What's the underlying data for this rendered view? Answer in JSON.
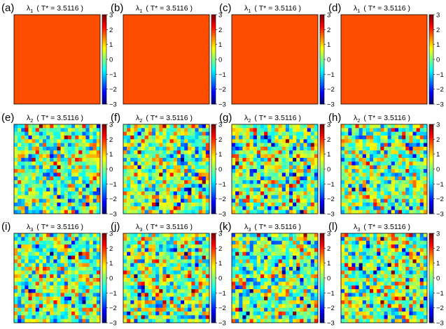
{
  "chart_data": [
    {
      "type": "heatmap",
      "panel_label": "(a)",
      "title_symbol": "λ",
      "title_index": "1",
      "title_temp": "( T* = 3.5116 )",
      "pattern": "uniform",
      "uniform_value": 1.8,
      "clim": [
        -3,
        3
      ],
      "colorbar_ticks": [
        "3",
        "2",
        "1",
        "0",
        "−1",
        "−2",
        "−3"
      ]
    },
    {
      "type": "heatmap",
      "panel_label": "(b)",
      "title_symbol": "λ",
      "title_index": "1",
      "title_temp": "( T* = 3.5116 )",
      "pattern": "uniform",
      "uniform_value": 1.8,
      "clim": [
        -3,
        3
      ],
      "colorbar_ticks": [
        "3",
        "2",
        "1",
        "0",
        "−1",
        "−2",
        "−3"
      ]
    },
    {
      "type": "heatmap",
      "panel_label": "(c)",
      "title_symbol": "λ",
      "title_index": "1",
      "title_temp": "( T* = 3.5116 )",
      "pattern": "uniform",
      "uniform_value": 1.8,
      "clim": [
        -3,
        3
      ],
      "colorbar_ticks": [
        "3",
        "2",
        "1",
        "0",
        "−1",
        "−2",
        "−3"
      ]
    },
    {
      "type": "heatmap",
      "panel_label": "(d)",
      "title_symbol": "λ",
      "title_index": "1",
      "title_temp": "( T* = 3.5116 )",
      "pattern": "uniform",
      "uniform_value": 1.8,
      "clim": [
        -3,
        3
      ],
      "colorbar_ticks": [
        "3",
        "2",
        "1",
        "0",
        "−1",
        "−2",
        "−3"
      ]
    },
    {
      "type": "heatmap",
      "panel_label": "(e)",
      "title_symbol": "λ",
      "title_index": "2",
      "title_temp": "( T* = 3.5116 )",
      "pattern": "random",
      "grid": 24,
      "clim": [
        -3,
        3
      ],
      "colorbar_ticks": [
        "3",
        "2",
        "1",
        "0",
        "−1",
        "−2",
        "−3"
      ]
    },
    {
      "type": "heatmap",
      "panel_label": "(f)",
      "title_symbol": "λ",
      "title_index": "2",
      "title_temp": "( T* = 3.5116 )",
      "pattern": "random",
      "grid": 24,
      "clim": [
        -3,
        3
      ],
      "colorbar_ticks": [
        "3",
        "2",
        "1",
        "0",
        "−1",
        "−2",
        "−3"
      ]
    },
    {
      "type": "heatmap",
      "panel_label": "(g)",
      "title_symbol": "λ",
      "title_index": "2",
      "title_temp": "( T* = 3.5116 )",
      "pattern": "random",
      "grid": 24,
      "clim": [
        -3,
        3
      ],
      "colorbar_ticks": [
        "3",
        "2",
        "1",
        "0",
        "−1",
        "−2",
        "−3"
      ]
    },
    {
      "type": "heatmap",
      "panel_label": "(h)",
      "title_symbol": "λ",
      "title_index": "2",
      "title_temp": "( T* = 3.5116 )",
      "pattern": "random",
      "grid": 24,
      "clim": [
        -3,
        3
      ],
      "colorbar_ticks": [
        "3",
        "2",
        "1",
        "0",
        "−1",
        "−2",
        "−3"
      ]
    },
    {
      "type": "heatmap",
      "panel_label": "(i)",
      "title_symbol": "λ",
      "title_index": "3",
      "title_temp": "( T* = 3.5116 )",
      "pattern": "random",
      "grid": 24,
      "clim": [
        -3,
        3
      ],
      "colorbar_ticks": [
        "3",
        "2",
        "1",
        "0",
        "−1",
        "−2",
        "−3"
      ]
    },
    {
      "type": "heatmap",
      "panel_label": "(j)",
      "title_symbol": "λ",
      "title_index": "3",
      "title_temp": "( T* = 3.5116 )",
      "pattern": "random",
      "grid": 24,
      "clim": [
        -3,
        3
      ],
      "colorbar_ticks": [
        "3",
        "2",
        "1",
        "0",
        "−1",
        "−2",
        "−3"
      ]
    },
    {
      "type": "heatmap",
      "panel_label": "(k)",
      "title_symbol": "λ",
      "title_index": "3",
      "title_temp": "( T* = 3.5116 )",
      "pattern": "random",
      "grid": 24,
      "clim": [
        -3,
        3
      ],
      "colorbar_ticks": [
        "3",
        "2",
        "1",
        "0",
        "−1",
        "−2",
        "−3"
      ]
    },
    {
      "type": "heatmap",
      "panel_label": "(l)",
      "title_symbol": "λ",
      "title_index": "3",
      "title_temp": "( T* = 3.5116 )",
      "pattern": "random",
      "grid": 24,
      "clim": [
        -3,
        3
      ],
      "colorbar_ticks": [
        "3",
        "2",
        "1",
        "0",
        "−1",
        "−2",
        "−3"
      ]
    }
  ]
}
